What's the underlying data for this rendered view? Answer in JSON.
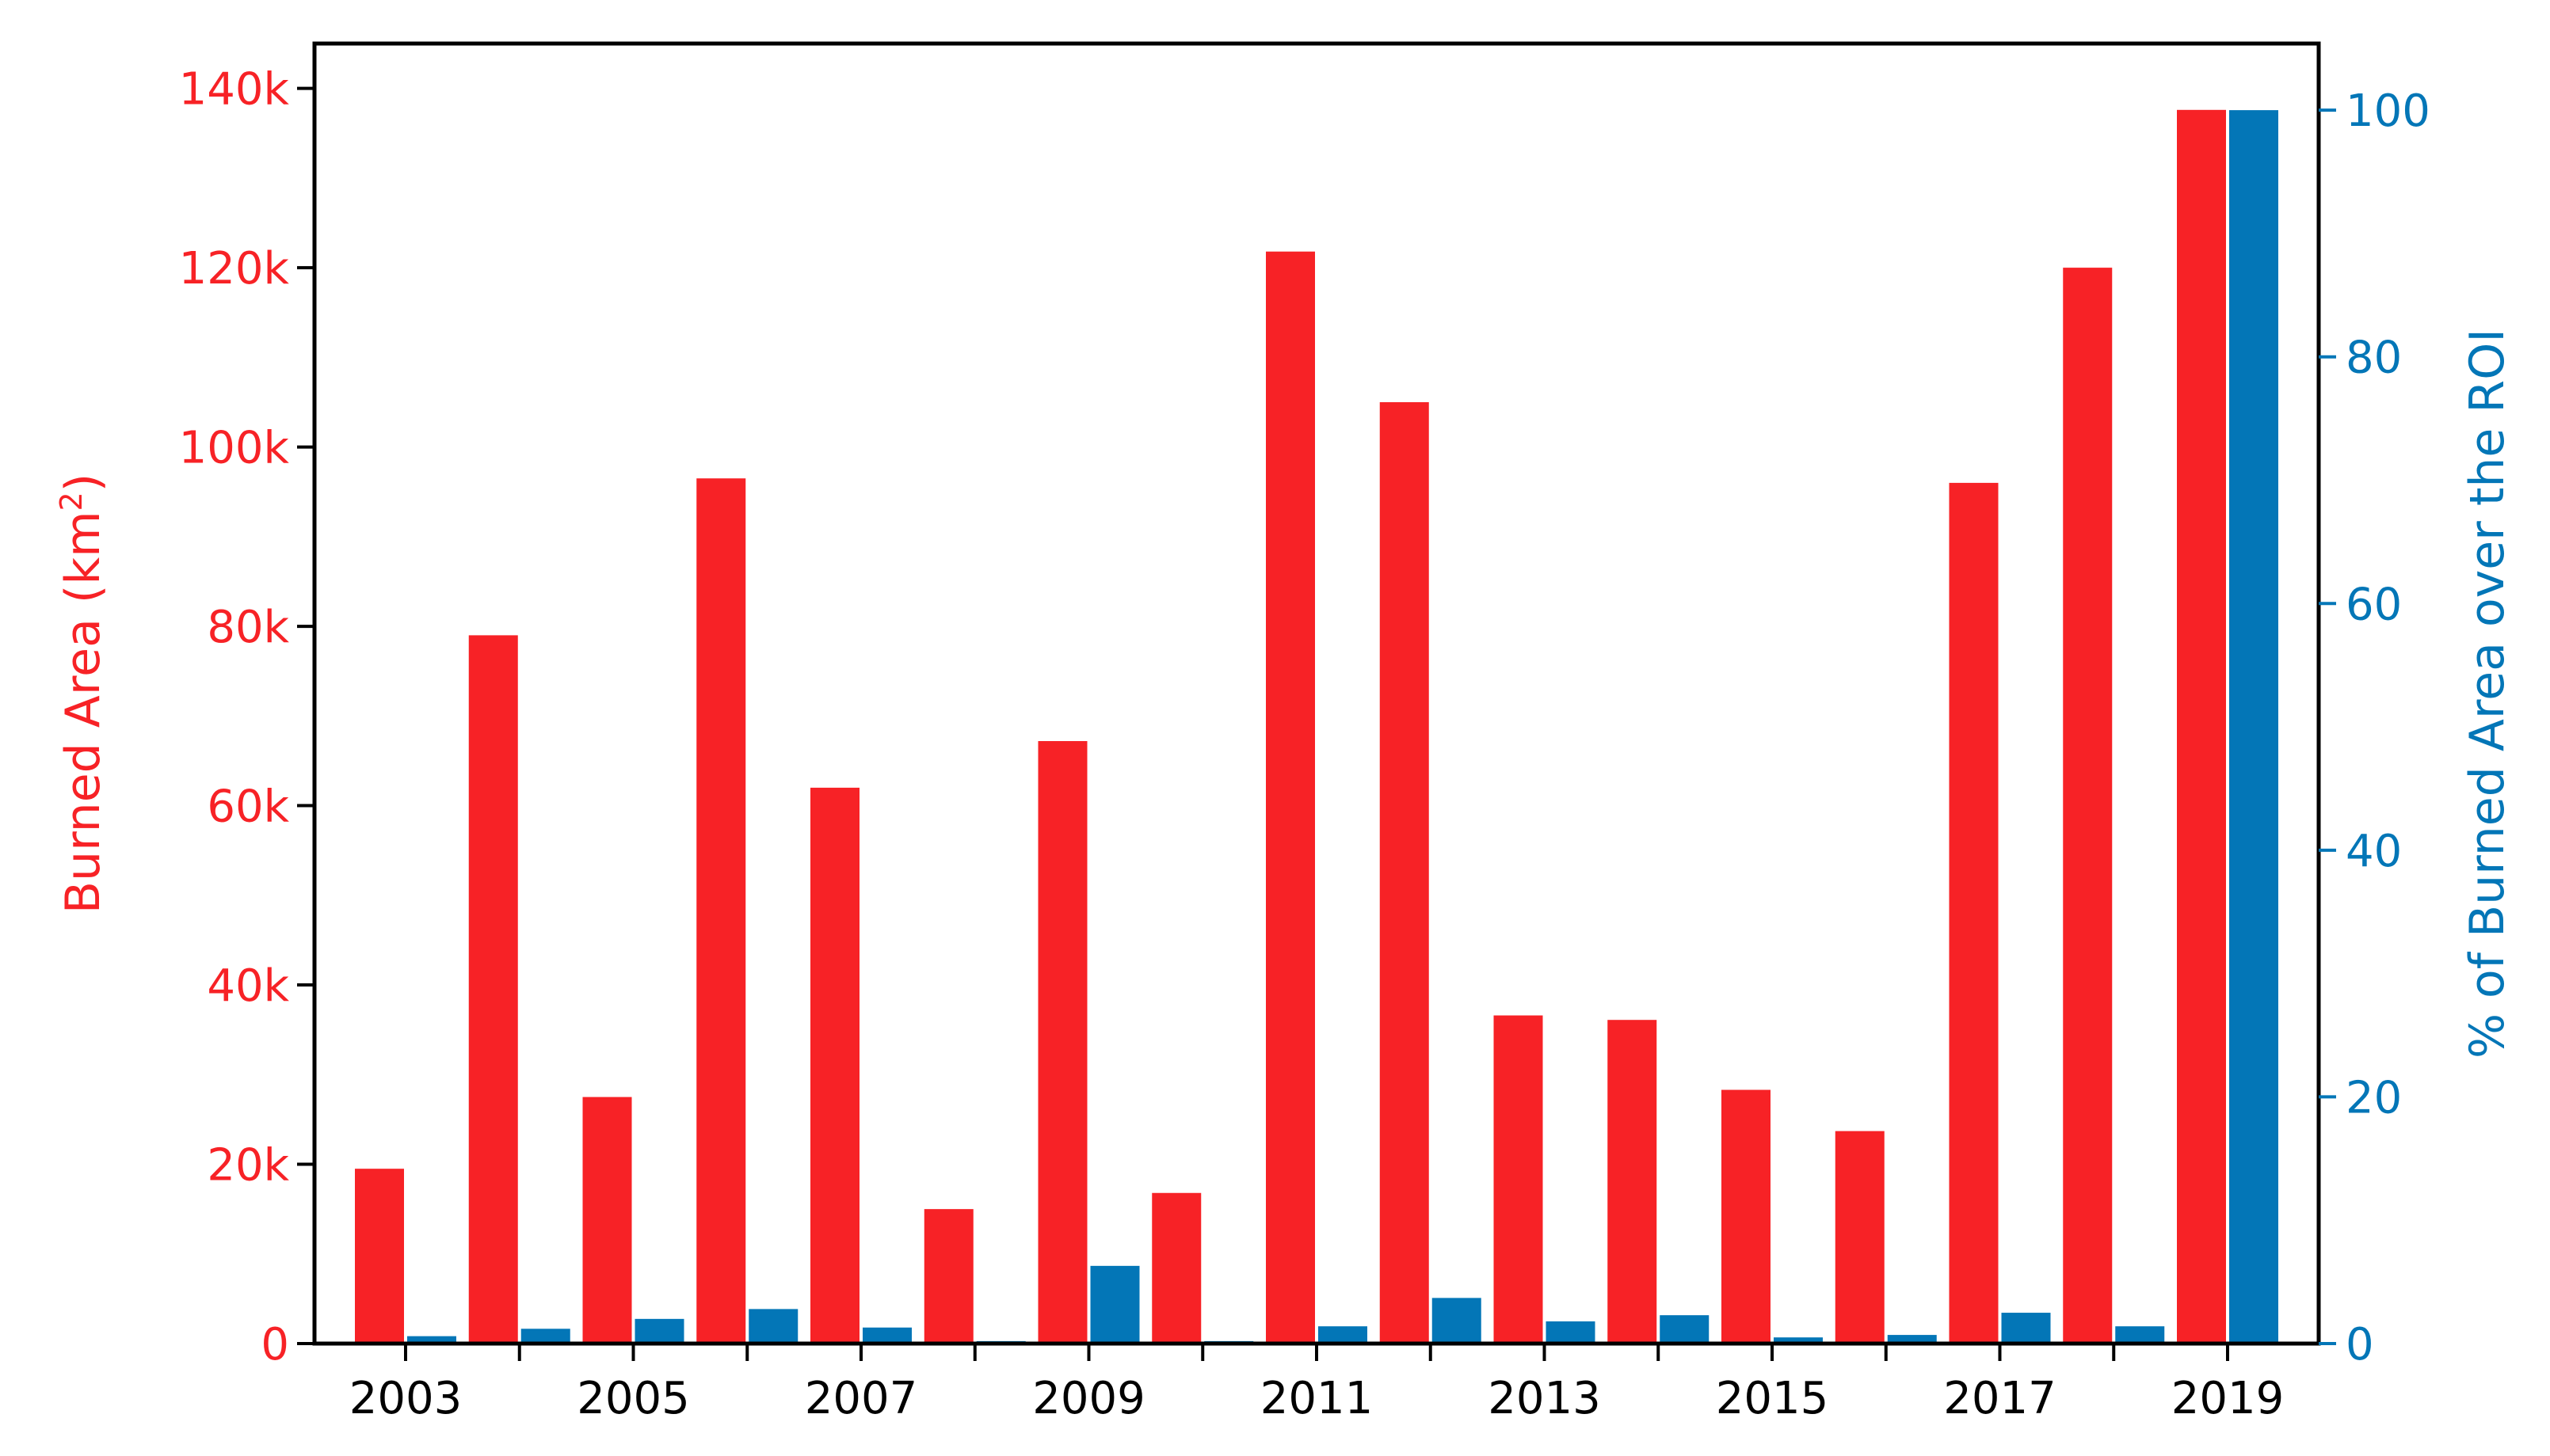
{
  "chart_data": {
    "type": "bar",
    "categories": [
      "2003",
      "2004",
      "2005",
      "2006",
      "2007",
      "2008",
      "2009",
      "2010",
      "2011",
      "2012",
      "2013",
      "2014",
      "2015",
      "2016",
      "2017",
      "2018",
      "2019"
    ],
    "x_tick_labels": [
      "2003",
      "2005",
      "2007",
      "2009",
      "2011",
      "2013",
      "2015",
      "2017",
      "2019"
    ],
    "series": [
      {
        "axis": "left",
        "color": "#f72226",
        "values": [
          19500,
          79000,
          27500,
          96500,
          62000,
          15000,
          67200,
          16800,
          121800,
          105000,
          36600,
          36100,
          28300,
          23700,
          96000,
          120000,
          137600
        ]
      },
      {
        "axis": "right",
        "color": "#0376b7",
        "values": [
          0.6,
          1.2,
          2.0,
          2.8,
          1.3,
          0.2,
          6.3,
          0.2,
          1.4,
          3.7,
          1.8,
          2.3,
          0.5,
          0.7,
          2.5,
          1.4,
          100
        ]
      }
    ],
    "left_axis": {
      "label_main": "Burned Area (km",
      "label_sup": "2",
      "label_end": ")",
      "ylim": [
        0,
        145000
      ],
      "ticks": [
        0,
        20000,
        40000,
        60000,
        80000,
        100000,
        120000,
        140000
      ],
      "tick_labels": [
        "0",
        "20k",
        "40k",
        "60k",
        "80k",
        "100k",
        "120k",
        "140k"
      ],
      "color": "#f72226"
    },
    "right_axis": {
      "label": "% of Burned Area over the ROI",
      "ylim": [
        0,
        105.4
      ],
      "ticks": [
        0,
        20,
        40,
        60,
        80,
        100
      ],
      "tick_labels": [
        "0",
        "20",
        "40",
        "60",
        "80",
        "100"
      ],
      "color": "#0376b7"
    },
    "grid": false,
    "legend": "none"
  }
}
